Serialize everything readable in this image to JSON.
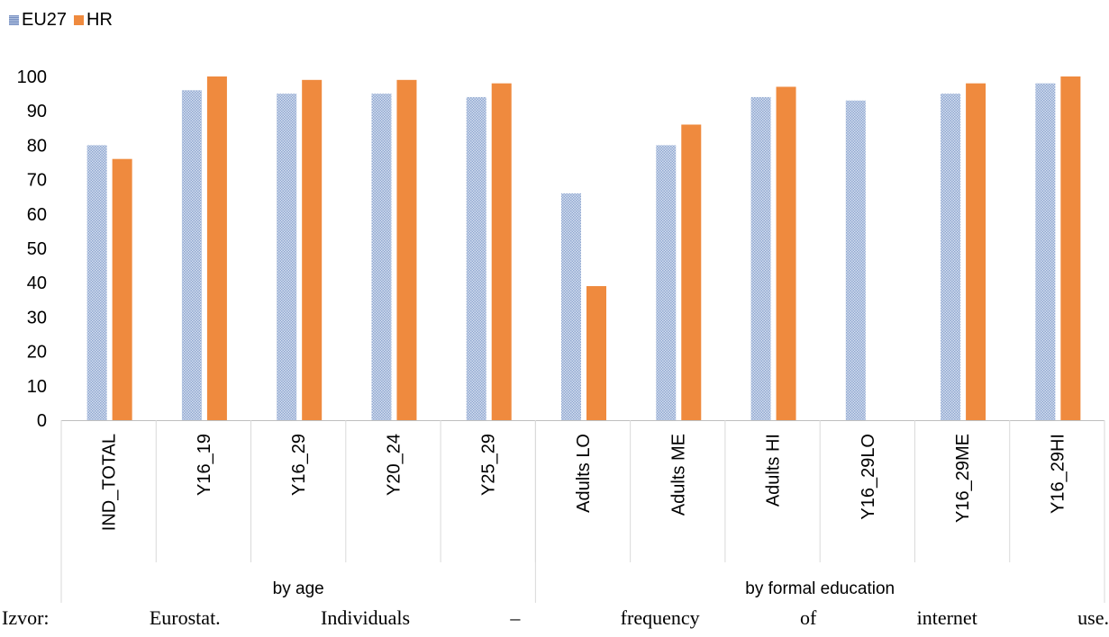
{
  "chart_data": {
    "type": "bar",
    "categories": [
      "IND_TOTAL",
      "Y16_19",
      "Y16_29",
      "Y20_24",
      "Y25_29",
      "Adults LO",
      "Adults ME",
      "Adults HI",
      "Y16_29LO",
      "Y16_29ME",
      "Y16_29HI"
    ],
    "groups": [
      {
        "label": "by age",
        "categories": [
          "IND_TOTAL",
          "Y16_19",
          "Y16_29",
          "Y20_24",
          "Y25_29"
        ]
      },
      {
        "label": "by formal education",
        "categories": [
          "Adults LO",
          "Adults ME",
          "Adults HI",
          "Y16_29LO",
          "Y16_29ME",
          "Y16_29HI"
        ]
      }
    ],
    "series": [
      {
        "name": "EU27",
        "color": "#aebfde",
        "values": [
          80,
          96,
          95,
          95,
          94,
          66,
          80,
          94,
          93,
          95,
          98
        ]
      },
      {
        "name": "HR",
        "color": "#ef8a3e",
        "values": [
          76,
          100,
          99,
          99,
          98,
          39,
          86,
          97,
          null,
          98,
          100
        ]
      }
    ],
    "yticks": [
      "0",
      "10",
      "20",
      "30",
      "40",
      "50",
      "60",
      "70",
      "80",
      "90",
      "100"
    ],
    "ylim": [
      0,
      100
    ],
    "grid": false,
    "legend_position": "top-left"
  },
  "legend": {
    "eu27": "EU27",
    "hr": "HR"
  },
  "caption": {
    "words": [
      "Izvor:",
      "Eurostat.",
      "Individuals",
      "–",
      "frequency",
      "of",
      "internet",
      "use."
    ]
  }
}
